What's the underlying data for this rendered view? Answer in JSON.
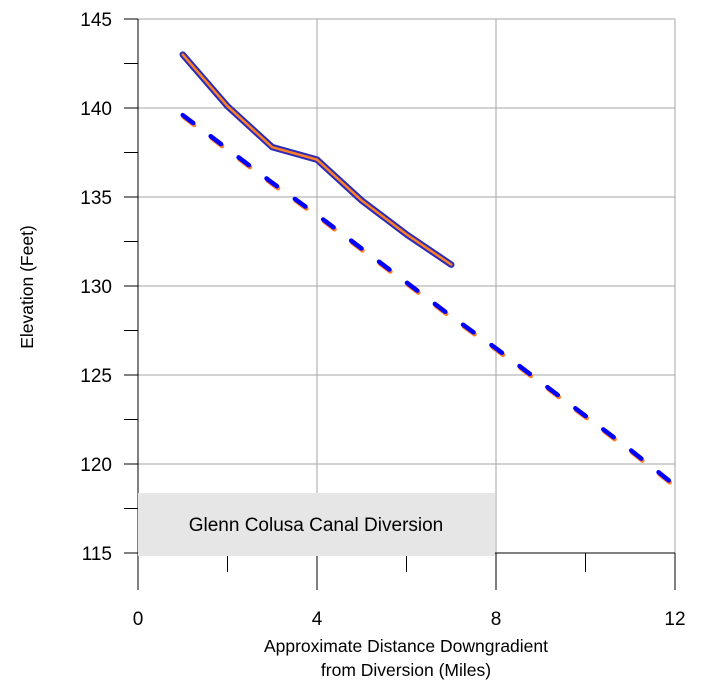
{
  "chart_data": {
    "type": "line",
    "title": "",
    "xlabel": [
      "Approximate Distance Downgradient",
      "from Diversion (Miles)"
    ],
    "ylabel": "Elevation (Feet)",
    "xlim": [
      0,
      12
    ],
    "ylim": [
      115,
      145
    ],
    "x_ticks": [
      0,
      4,
      8,
      12
    ],
    "y_ticks": [
      115,
      120,
      125,
      130,
      135,
      140,
      145
    ],
    "x_minor_step": 2,
    "y_minor_step": 2.5,
    "grid": "major",
    "legend": "none",
    "annotation": "Glenn Colusa Canal Diversion",
    "annotation_bg": "#e6e6e6",
    "series": [
      {
        "style": "solid",
        "colors": [
          "#2b2bb5",
          "#ff7f27"
        ],
        "x": [
          1,
          2,
          3,
          4,
          5,
          6,
          7
        ],
        "y": [
          143.0,
          140.1,
          137.8,
          137.1,
          134.8,
          132.9,
          131.2
        ]
      },
      {
        "style": "dashed",
        "colors": [
          "#0000ff",
          "#ff7f27"
        ],
        "x": [
          1,
          2,
          3,
          4,
          5,
          6,
          7,
          8,
          9,
          10,
          11,
          12
        ],
        "y": [
          139.6,
          137.7,
          135.8,
          134.0,
          132.1,
          130.2,
          128.3,
          126.5,
          124.6,
          122.7,
          120.8,
          118.8
        ]
      }
    ]
  }
}
